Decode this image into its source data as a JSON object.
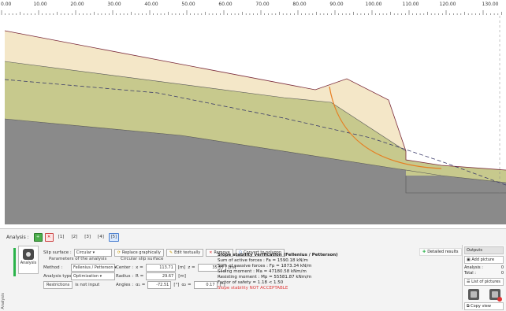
{
  "ruler": {
    "labels": [
      "0.00",
      "10.00",
      "20.00",
      "30.00",
      "40.00",
      "50.00",
      "60.00",
      "70.00",
      "80.00",
      "90.00",
      "100.00",
      "110.00",
      "120.00",
      "130.00"
    ]
  },
  "drawing": {
    "colors": {
      "top_soil": "#f4e7c8",
      "middle_soil": "#c7c98d",
      "bedrock": "#8a8a8a",
      "slip_surface": "#e67e22",
      "piezometric": "#3a3a6a"
    }
  },
  "panel": {
    "side_label": "Analysis",
    "tab_title": "Analysis :",
    "tabs": [
      "[1]",
      "[2]",
      "[3]",
      "[4]",
      "[5]"
    ],
    "analysis_button": "Analysis",
    "slip_surface_label": "Slip surface :",
    "slip_surface_value": "Circular",
    "replace_graphically": "Replace graphically",
    "edit_textually": "Edit textually",
    "remove": "Remove",
    "convert_to_polygon": "Convert to polygon",
    "params_group": "Parameters of the analysis",
    "method_label": "Method :",
    "method_value": "Fellenius / Petterson",
    "analysis_type_label": "Analysis type :",
    "analysis_type_value": "Optimization",
    "restrictions_button": "Restrictions",
    "restrictions_value": "is not input",
    "circle_group": "Circular slip surface",
    "center_label": "Center :",
    "x_label": "x =",
    "x_value": "113.71",
    "x_unit": "[m]",
    "z_label": "z =",
    "z_value": "35.85",
    "z_unit": "[m]",
    "radius_label": "Radius :",
    "r_label": "R =",
    "r_value": "29.67",
    "r_unit": "[m]",
    "angles_label": "Angles :",
    "a1_label": "α₁ =",
    "a1_value": "-72.51",
    "a1_unit": "[°]",
    "a2_label": "α₂ =",
    "a2_value": "0.17",
    "a2_unit": "[°]",
    "detailed_results": "Detailed results"
  },
  "results": {
    "title": "Slope stability verification (Fellenius / Petterson)",
    "active": "Sum of active forces :   Fa =    1590.18  kN/m",
    "passive": "Sum of passive forces :   Fp =    1873.34  kN/m",
    "sliding": "Sliding moment :          Ma =   47180.58  kNm/m",
    "resisting": "Resisting moment :        Mp =   55581.87  kNm/m",
    "factor": "Factor of safety = 1.18 < 1.50",
    "verdict": "Slope stability NOT ACCEPTABLE"
  },
  "outputs": {
    "header": "Outputs",
    "add_picture": "Add picture",
    "analysis_label": "Analysis :",
    "analysis_count": "0",
    "total_label": "Total :",
    "total_count": "0",
    "list_of_pictures": "List of pictures",
    "copy_view": "Copy view"
  }
}
